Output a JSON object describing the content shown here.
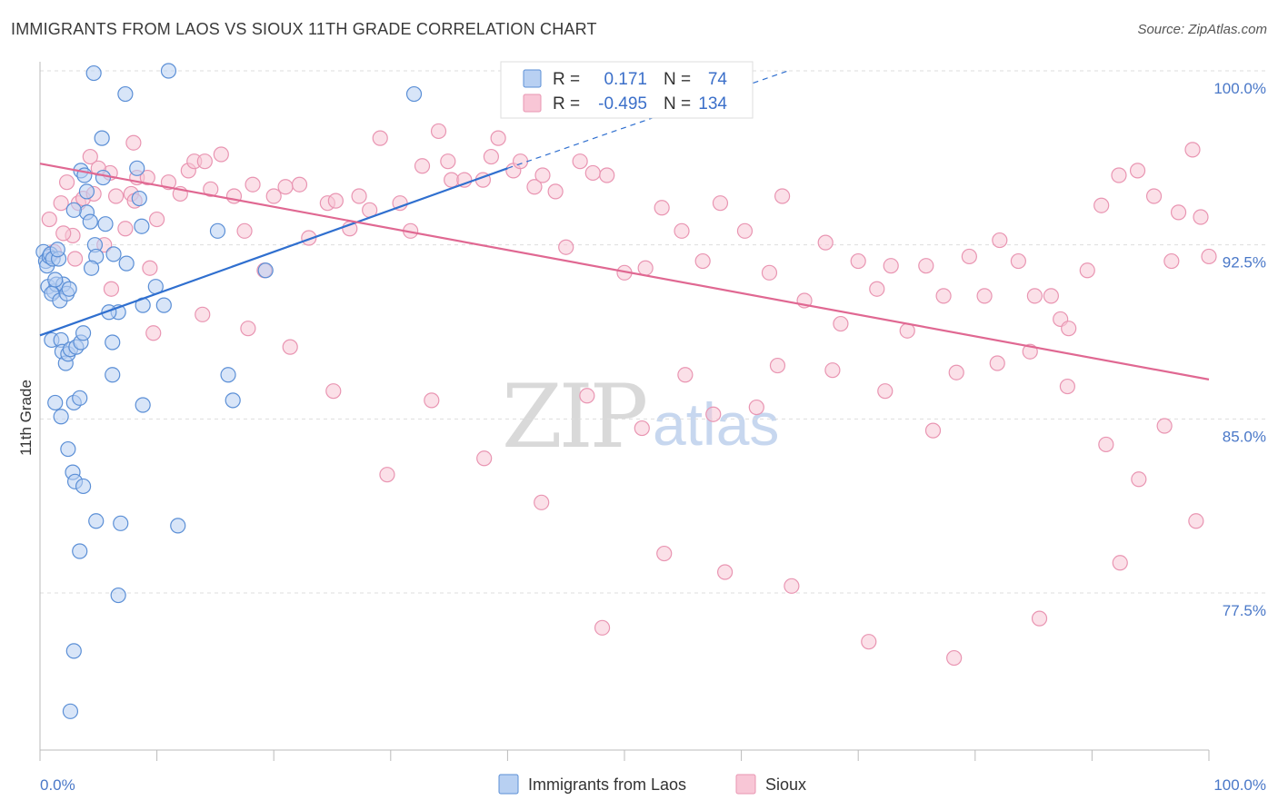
{
  "header": {
    "title": "IMMIGRANTS FROM LAOS VS SIOUX 11TH GRADE CORRELATION CHART",
    "source": "Source: ZipAtlas.com"
  },
  "legend_box": {
    "rows": [
      {
        "r_label": "R =",
        "r_value": "0.171",
        "n_label": "N =",
        "n_value": "74"
      },
      {
        "r_label": "R =",
        "r_value": "-0.495",
        "n_label": "N =",
        "n_value": "134"
      }
    ]
  },
  "watermark": {
    "zip": "ZIP",
    "atlas": "atlas"
  },
  "colors": {
    "blue_fill": "#b8d0f2",
    "blue_stroke": "#5b8fd6",
    "blue_line": "#2f6fcf",
    "pink_fill": "#f8c6d6",
    "pink_stroke": "#e995b2",
    "pink_line": "#e06892",
    "grid": "#dddddd",
    "tick_label": "#4a78c8"
  },
  "chart_data": {
    "type": "scatter",
    "title": "IMMIGRANTS FROM LAOS VS SIOUX 11TH GRADE CORRELATION CHART",
    "xlabel": "",
    "ylabel": "11th Grade",
    "xlim": [
      0,
      100
    ],
    "ylim": [
      71,
      101
    ],
    "y_ticks": [
      77.5,
      85.0,
      92.5,
      100.0
    ],
    "y_tick_labels": [
      "77.5%",
      "85.0%",
      "92.5%",
      "100.0%"
    ],
    "x_tick_labels": [
      "0.0%",
      "100.0%"
    ],
    "grid": true,
    "series": [
      {
        "name": "Immigrants from Laos",
        "color": "#5b8fd6",
        "R": 0.171,
        "N": 74,
        "trend": {
          "x0": 0,
          "y0": 88.6,
          "x1": 40,
          "y1": 95.8,
          "dashed_to_x": 64,
          "dashed_to_y": 100.0
        },
        "points": [
          [
            0.3,
            92.2
          ],
          [
            0.5,
            91.8
          ],
          [
            0.6,
            91.6
          ],
          [
            0.8,
            92.0
          ],
          [
            0.9,
            92.1
          ],
          [
            1.1,
            91.9
          ],
          [
            0.7,
            90.7
          ],
          [
            1.2,
            90.5
          ],
          [
            1.4,
            90.8
          ],
          [
            1.0,
            90.4
          ],
          [
            1.6,
            91.9
          ],
          [
            1.7,
            90.1
          ],
          [
            2.0,
            90.8
          ],
          [
            2.3,
            90.4
          ],
          [
            2.5,
            90.6
          ],
          [
            1.0,
            88.4
          ],
          [
            1.8,
            88.4
          ],
          [
            1.9,
            87.9
          ],
          [
            2.2,
            87.4
          ],
          [
            2.4,
            87.8
          ],
          [
            2.6,
            88.0
          ],
          [
            3.1,
            88.1
          ],
          [
            3.5,
            88.3
          ],
          [
            3.7,
            88.7
          ],
          [
            1.3,
            85.7
          ],
          [
            1.8,
            85.1
          ],
          [
            2.9,
            85.7
          ],
          [
            3.4,
            85.9
          ],
          [
            2.4,
            83.7
          ],
          [
            2.8,
            82.7
          ],
          [
            3.0,
            82.3
          ],
          [
            3.7,
            82.1
          ],
          [
            4.8,
            80.6
          ],
          [
            3.4,
            79.3
          ],
          [
            2.9,
            75.0
          ],
          [
            2.6,
            72.4
          ],
          [
            6.9,
            80.5
          ],
          [
            11.8,
            80.4
          ],
          [
            6.7,
            77.4
          ],
          [
            4.6,
            99.9
          ],
          [
            7.3,
            99.0
          ],
          [
            5.3,
            97.1
          ],
          [
            5.4,
            95.4
          ],
          [
            3.5,
            95.7
          ],
          [
            4.0,
            94.8
          ],
          [
            4.0,
            93.9
          ],
          [
            4.3,
            93.5
          ],
          [
            4.7,
            92.5
          ],
          [
            5.6,
            93.4
          ],
          [
            4.8,
            92.0
          ],
          [
            6.3,
            92.1
          ],
          [
            7.4,
            91.7
          ],
          [
            4.4,
            91.5
          ],
          [
            8.3,
            95.8
          ],
          [
            8.5,
            94.5
          ],
          [
            8.7,
            93.3
          ],
          [
            9.9,
            90.7
          ],
          [
            8.8,
            89.9
          ],
          [
            6.7,
            89.6
          ],
          [
            6.2,
            88.3
          ],
          [
            6.2,
            86.9
          ],
          [
            8.8,
            85.6
          ],
          [
            11.0,
            100.0
          ],
          [
            15.2,
            93.1
          ],
          [
            16.1,
            86.9
          ],
          [
            16.5,
            85.8
          ],
          [
            19.3,
            91.4
          ],
          [
            32.0,
            99.0
          ],
          [
            1.5,
            92.3
          ],
          [
            2.9,
            94.0
          ],
          [
            3.8,
            95.5
          ],
          [
            5.9,
            89.6
          ],
          [
            10.6,
            89.9
          ],
          [
            1.3,
            91.0
          ]
        ]
      },
      {
        "name": "Sioux",
        "color": "#e995b2",
        "R": -0.495,
        "N": 134,
        "trend": {
          "x0": 0,
          "y0": 96.0,
          "x1": 100,
          "y1": 86.7
        },
        "points": [
          [
            0.8,
            93.6
          ],
          [
            1.2,
            92.2
          ],
          [
            1.8,
            94.3
          ],
          [
            2.3,
            95.2
          ],
          [
            2.8,
            92.9
          ],
          [
            3.3,
            94.3
          ],
          [
            3.7,
            94.5
          ],
          [
            4.3,
            96.3
          ],
          [
            4.6,
            94.7
          ],
          [
            5.5,
            92.5
          ],
          [
            6.0,
            95.6
          ],
          [
            6.5,
            94.6
          ],
          [
            7.3,
            93.2
          ],
          [
            7.8,
            94.7
          ],
          [
            8.1,
            94.4
          ],
          [
            8.3,
            95.4
          ],
          [
            9.2,
            95.4
          ],
          [
            9.4,
            91.5
          ],
          [
            10.0,
            93.6
          ],
          [
            11.0,
            95.2
          ],
          [
            12.0,
            94.7
          ],
          [
            12.7,
            95.7
          ],
          [
            13.2,
            96.1
          ],
          [
            14.1,
            96.1
          ],
          [
            14.6,
            94.9
          ],
          [
            15.5,
            96.4
          ],
          [
            16.6,
            94.6
          ],
          [
            17.5,
            93.1
          ],
          [
            18.2,
            95.1
          ],
          [
            19.2,
            91.4
          ],
          [
            20.0,
            94.6
          ],
          [
            21.0,
            95.0
          ],
          [
            22.2,
            95.1
          ],
          [
            23.0,
            92.8
          ],
          [
            24.6,
            94.3
          ],
          [
            25.3,
            94.4
          ],
          [
            26.5,
            93.2
          ],
          [
            27.3,
            94.6
          ],
          [
            28.2,
            94.0
          ],
          [
            29.1,
            97.1
          ],
          [
            30.8,
            94.3
          ],
          [
            31.7,
            93.1
          ],
          [
            32.7,
            95.9
          ],
          [
            34.1,
            97.4
          ],
          [
            34.9,
            96.1
          ],
          [
            35.2,
            95.3
          ],
          [
            36.3,
            95.3
          ],
          [
            37.9,
            95.3
          ],
          [
            38.6,
            96.3
          ],
          [
            39.2,
            97.1
          ],
          [
            40.5,
            95.7
          ],
          [
            41.1,
            96.1
          ],
          [
            42.3,
            95.0
          ],
          [
            43.0,
            95.5
          ],
          [
            44.1,
            94.8
          ],
          [
            45.0,
            92.4
          ],
          [
            46.2,
            96.1
          ],
          [
            47.3,
            95.6
          ],
          [
            48.5,
            95.5
          ],
          [
            50.0,
            91.3
          ],
          [
            51.8,
            91.5
          ],
          [
            53.2,
            94.1
          ],
          [
            54.9,
            93.1
          ],
          [
            56.7,
            91.8
          ],
          [
            58.2,
            94.3
          ],
          [
            60.3,
            93.1
          ],
          [
            62.4,
            91.3
          ],
          [
            63.5,
            94.6
          ],
          [
            65.4,
            90.1
          ],
          [
            67.2,
            92.6
          ],
          [
            68.5,
            89.1
          ],
          [
            70.0,
            91.8
          ],
          [
            71.6,
            90.6
          ],
          [
            72.8,
            91.6
          ],
          [
            74.2,
            88.8
          ],
          [
            75.8,
            91.6
          ],
          [
            77.3,
            90.3
          ],
          [
            78.4,
            87.0
          ],
          [
            79.5,
            92.0
          ],
          [
            80.8,
            90.3
          ],
          [
            82.1,
            92.7
          ],
          [
            83.7,
            91.8
          ],
          [
            85.1,
            90.3
          ],
          [
            86.5,
            90.3
          ],
          [
            87.3,
            89.3
          ],
          [
            88.0,
            88.9
          ],
          [
            89.6,
            91.4
          ],
          [
            90.8,
            94.2
          ],
          [
            92.3,
            95.5
          ],
          [
            93.9,
            95.7
          ],
          [
            95.3,
            94.6
          ],
          [
            96.8,
            91.8
          ],
          [
            97.4,
            93.9
          ],
          [
            98.6,
            96.6
          ],
          [
            99.3,
            93.7
          ],
          [
            100.0,
            92.0
          ],
          [
            46.8,
            86.0
          ],
          [
            51.5,
            84.6
          ],
          [
            55.2,
            86.9
          ],
          [
            57.6,
            85.2
          ],
          [
            61.3,
            85.5
          ],
          [
            63.1,
            87.3
          ],
          [
            67.8,
            87.1
          ],
          [
            72.3,
            86.2
          ],
          [
            76.4,
            84.5
          ],
          [
            81.9,
            87.4
          ],
          [
            84.7,
            87.9
          ],
          [
            87.9,
            86.4
          ],
          [
            91.2,
            83.9
          ],
          [
            94.0,
            82.4
          ],
          [
            96.2,
            84.7
          ],
          [
            98.9,
            80.6
          ],
          [
            92.4,
            78.8
          ],
          [
            85.5,
            76.4
          ],
          [
            78.2,
            74.7
          ],
          [
            70.9,
            75.4
          ],
          [
            64.3,
            77.8
          ],
          [
            58.6,
            78.4
          ],
          [
            53.4,
            79.2
          ],
          [
            48.1,
            76.0
          ],
          [
            42.9,
            81.4
          ],
          [
            38.0,
            83.3
          ],
          [
            33.5,
            85.8
          ],
          [
            29.7,
            82.6
          ],
          [
            25.1,
            86.2
          ],
          [
            21.4,
            88.1
          ],
          [
            17.8,
            88.9
          ],
          [
            13.9,
            89.5
          ],
          [
            9.7,
            88.7
          ],
          [
            6.1,
            90.6
          ],
          [
            3.0,
            91.9
          ],
          [
            2.0,
            93.0
          ],
          [
            5.0,
            95.8
          ],
          [
            8.0,
            96.9
          ]
        ]
      }
    ]
  },
  "bottom_legend": {
    "items": [
      {
        "label": "Immigrants from Laos"
      },
      {
        "label": "Sioux"
      }
    ]
  }
}
